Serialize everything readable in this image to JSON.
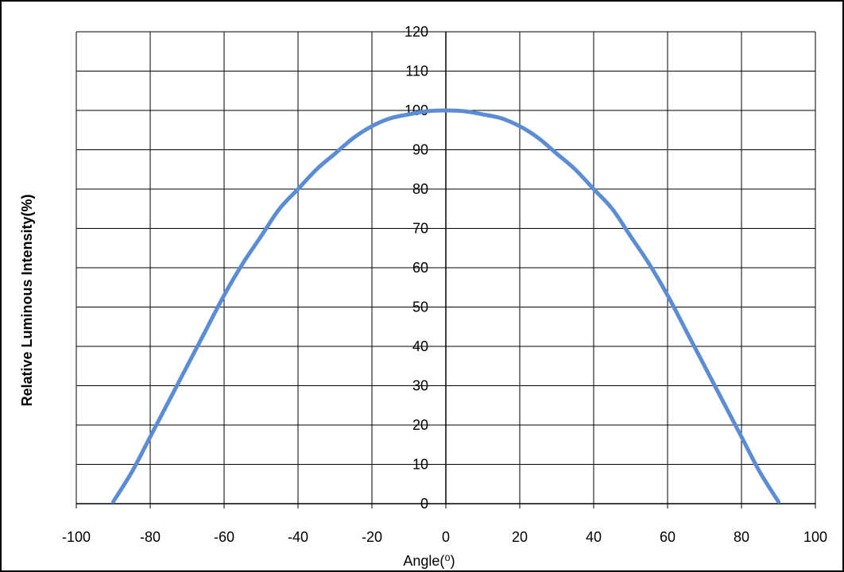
{
  "chart_data": {
    "type": "line",
    "title": "",
    "xlabel": "Angle(⁰)",
    "ylabel": "Relative Luminous Intensity(%)",
    "xlim": [
      -100,
      100
    ],
    "ylim": [
      0,
      120
    ],
    "x_ticks": [
      -100,
      -80,
      -60,
      -40,
      -20,
      0,
      20,
      40,
      60,
      80,
      100
    ],
    "y_ticks": [
      0,
      10,
      20,
      30,
      40,
      50,
      60,
      70,
      80,
      90,
      100,
      110,
      120
    ],
    "grid": true,
    "series_color": "#5b8dd6",
    "series": [
      {
        "x": [
          -90,
          -85,
          -80,
          -75,
          -70,
          -65,
          -60,
          -55,
          -50,
          -45,
          -40,
          -35,
          -30,
          -25,
          -20,
          -15,
          -10,
          -5,
          0,
          5,
          10,
          15,
          20,
          25,
          30,
          35,
          40,
          45,
          50,
          55,
          60,
          65,
          70,
          75,
          80,
          85,
          90
        ],
        "y": [
          0.5,
          8,
          17,
          26,
          35,
          44,
          53,
          61,
          68,
          75,
          80,
          85,
          89,
          93,
          96,
          98,
          99,
          99.8,
          100,
          99.8,
          99,
          98,
          96,
          93,
          89,
          85,
          80,
          75,
          68,
          61,
          53,
          44,
          35,
          26,
          17,
          8,
          0.5
        ]
      }
    ]
  }
}
